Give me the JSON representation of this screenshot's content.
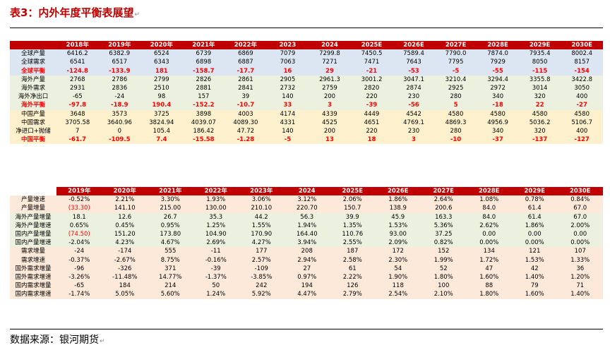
{
  "title": "表3：内外年度平衡表展望",
  "title_mark": "↵",
  "source": "数据来源：银河期货",
  "source_mark": "↵",
  "table1": {
    "columns": [
      "",
      "2018年",
      "2019年",
      "2020年",
      "2021年",
      "2022年",
      "2023",
      "2024",
      "2025E",
      "2026E",
      "2027E",
      "2028E",
      "2029E",
      "2030E"
    ],
    "rows": [
      {
        "style": "blue",
        "label": "全球产量",
        "values": [
          "6416.2",
          "6382.9",
          "6524",
          "6739",
          "6869",
          "7079",
          "7299.8",
          "7450.5",
          "7589.4",
          "7790.0",
          "7874.0",
          "7935.4",
          "8002.4"
        ]
      },
      {
        "style": "blue",
        "label": "全球需求",
        "values": [
          "6541",
          "6517",
          "6343",
          "6898",
          "6887",
          "7063",
          "7271",
          "7471",
          "7643",
          "7795",
          "7929",
          "8050",
          "8157"
        ]
      },
      {
        "style": "blue bal",
        "label": "全球平衡",
        "values": [
          "-124.8",
          "-133.9",
          "181",
          "-158.7",
          "-17.7",
          "16",
          "29",
          "-21",
          "-53",
          "-5",
          "-55",
          "-115",
          "-154"
        ]
      },
      {
        "style": "green",
        "label": "海外产量",
        "values": [
          "2768",
          "2786",
          "2799",
          "2826",
          "2861",
          "2905",
          "2961.3",
          "3001.2",
          "3047.1",
          "3210.4",
          "3294.4",
          "3355.8",
          "3422.8"
        ]
      },
      {
        "style": "green",
        "label": "海外需求",
        "values": [
          "2931",
          "2836",
          "2510",
          "2881",
          "2841",
          "2732",
          "2759",
          "2820",
          "2874",
          "2925",
          "2972",
          "3014",
          "3050"
        ]
      },
      {
        "style": "green",
        "label": "海外净出口",
        "values": [
          "-65",
          "-24",
          "98",
          "157",
          "39",
          "140",
          "200",
          "220",
          "230",
          "280",
          "340",
          "320",
          "400"
        ]
      },
      {
        "style": "green bal",
        "label": "海外平衡",
        "values": [
          "-97.8",
          "-18.9",
          "190.4",
          "-152.2",
          "-10.7",
          "33",
          "3",
          "-39",
          "-56",
          "5",
          "-18",
          "22",
          "-27"
        ]
      },
      {
        "style": "tan",
        "label": "中国产量",
        "values": [
          "3648",
          "3573",
          "3725",
          "3898",
          "4003",
          "4174",
          "4339",
          "4449",
          "4542",
          "4580",
          "4580",
          "4580",
          "4580"
        ]
      },
      {
        "style": "tan",
        "label": "中国需求",
        "values": [
          "3705.58",
          "3640.96",
          "3824.94",
          "4039.07",
          "4089.30",
          "4331",
          "4525",
          "4651",
          "4769.1",
          "4869.3",
          "4956.9",
          "5036.2",
          "5106.7"
        ]
      },
      {
        "style": "tan",
        "label": "净进口+抛储",
        "values": [
          "7",
          "0",
          "105.4",
          "186.42",
          "47.72",
          "140",
          "200",
          "220",
          "230",
          "280",
          "340",
          "320",
          "400"
        ]
      },
      {
        "style": "tan bal",
        "label": "中国平衡",
        "values": [
          "-61.7",
          "-109.5",
          "7.4",
          "-15.58",
          "-1.28",
          "-5",
          "13",
          "18",
          "3",
          "-10",
          "-37",
          "-137",
          "-127"
        ]
      }
    ]
  },
  "table2": {
    "columns": [
      "",
      "2019年",
      "2020年",
      "2021年",
      "2022年",
      "2023年",
      "2024",
      "2025E",
      "2026E",
      "2027E",
      "2028E",
      "2029E",
      "2030E"
    ],
    "rows": [
      {
        "style": "yellow",
        "label": "产量增速",
        "values": [
          "-0.52%",
          "2.21%",
          "3.30%",
          "1.93%",
          "3.06%",
          "3.12%",
          "2.06%",
          "1.86%",
          "2.64%",
          "1.08%",
          "0.78%",
          "0.84%"
        ]
      },
      {
        "style": "yellow",
        "label": "产量增量",
        "values": [
          "(33.30)",
          "141.10",
          "215.00",
          "130.00",
          "210.10",
          "220.70",
          "150.7",
          "138.9",
          "200.6",
          "84.0",
          "61.4",
          "67.0"
        ],
        "red": [
          0
        ]
      },
      {
        "style": "green",
        "label": "海外产量增量",
        "values": [
          "18.1",
          "12.6",
          "26.7",
          "35.3",
          "44.2",
          "56.3",
          "39.9",
          "45.9",
          "163.3",
          "84.0",
          "61.4",
          "67.0"
        ]
      },
      {
        "style": "green",
        "label": "海外产量增速",
        "values": [
          "0.65%",
          "0.45%",
          "0.95%",
          "1.25%",
          "1.55%",
          "1.94%",
          "1.35%",
          "1.53%",
          "5.36%",
          "2.62%",
          "1.86%",
          "2.00%"
        ]
      },
      {
        "style": "green",
        "label": "国内产量增量",
        "values": [
          "(74.50)",
          "151.20",
          "173.80",
          "104.90",
          "170.90",
          "164.40",
          "110.76",
          "93.00",
          "37.25",
          "0.00",
          "0.00",
          "0.00"
        ],
        "red": [
          0
        ]
      },
      {
        "style": "green",
        "label": "国内产量增速",
        "values": [
          "-2.04%",
          "4.23%",
          "4.67%",
          "2.69%",
          "4.27%",
          "3.94%",
          "2.55%",
          "2.09%",
          "0.82%",
          "0.00%",
          "0.00%",
          "0.00%"
        ]
      },
      {
        "style": "yellow",
        "label": "需求增量",
        "values": [
          "-24",
          "-174",
          "555",
          "-11",
          "177",
          "208",
          "187",
          "172",
          "152",
          "134",
          "121",
          "107"
        ]
      },
      {
        "style": "yellow",
        "label": "需求增速",
        "values": [
          "-0.37%",
          "-2.67%",
          "8.75%",
          "-0.16%",
          "2.57%",
          "2.94%",
          "2.58%",
          "2.30%",
          "1.99%",
          "1.72%",
          "1.53%",
          "1.33%"
        ]
      },
      {
        "style": "yellow",
        "label": "国外需求增量",
        "values": [
          "-96",
          "-326",
          "371",
          "-39",
          "-109",
          "27",
          "61",
          "54",
          "52",
          "47",
          "42",
          "36"
        ]
      },
      {
        "style": "yellow",
        "label": "国外需求增速",
        "values": [
          "-3.26%",
          "-11.48%",
          "14.77%",
          "-1.37%",
          "-3.85%",
          "0.97%",
          "2.22%",
          "1.90%",
          "1.80%",
          "1.60%",
          "1.40%",
          "1.20%"
        ]
      },
      {
        "style": "yellow",
        "label": "国内需求增量",
        "values": [
          "-65",
          "184",
          "214",
          "50",
          "242",
          "194",
          "126",
          "118",
          "100",
          "88",
          "79",
          "71"
        ]
      },
      {
        "style": "yellow",
        "label": "国内需求增速",
        "values": [
          "-1.74%",
          "5.05%",
          "5.60%",
          "1.24%",
          "5.92%",
          "4.47%",
          "2.79%",
          "2.54%",
          "2.10%",
          "1.80%",
          "1.60%",
          "1.40%"
        ]
      }
    ]
  }
}
